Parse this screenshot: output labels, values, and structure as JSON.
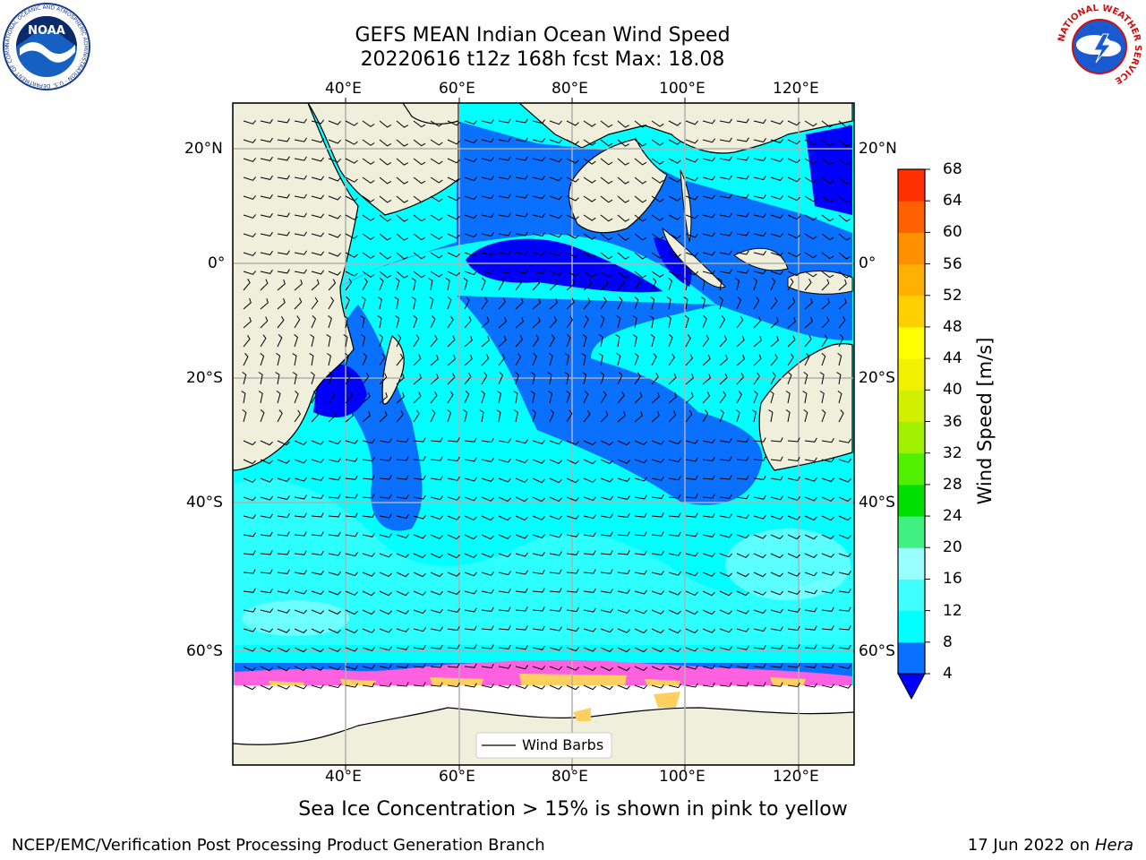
{
  "header": {
    "title_line1": "GEFS MEAN Indian Ocean Wind Speed",
    "title_line2": "20220616 t12z 168h fcst   Max: 18.08"
  },
  "logos": {
    "left": {
      "name": "NOAA",
      "ring_text": "NATIONAL OCEANIC AND ATMOSPHERIC ADMINISTRATION · U.S. DEPARTMENT OF COMMERCE"
    },
    "right": {
      "name": "NATIONAL WEATHER SERVICE"
    }
  },
  "map": {
    "lon_labels": [
      "40°E",
      "60°E",
      "80°E",
      "100°E",
      "120°E"
    ],
    "lat_labels": [
      "20°N",
      "0°",
      "20°S",
      "40°S",
      "60°S"
    ],
    "legend_label": "Wind Barbs",
    "ice_note": "Sea Ice Concentration > 15% is shown in pink to yellow"
  },
  "colorbar": {
    "label": "Wind Speed [m/s]",
    "ticks": [
      "4",
      "8",
      "12",
      "16",
      "20",
      "24",
      "28",
      "32",
      "36",
      "40",
      "44",
      "48",
      "52",
      "56",
      "60",
      "64",
      "68"
    ],
    "colors": [
      "#0a70ff",
      "#00ffff",
      "#40ffff",
      "#9affff",
      "#40f080",
      "#00e000",
      "#50f000",
      "#a0f000",
      "#d0f000",
      "#f0f000",
      "#ffff00",
      "#ffd000",
      "#ffb000",
      "#ff9000",
      "#ff6000",
      "#ff3000",
      "#ff0000"
    ],
    "extend_color": "#0000ff"
  },
  "footer": {
    "left": "NCEP/EMC/Verification Post Processing Product Generation Branch",
    "right_date": "17 Jun 2022 on",
    "right_host": "Hera"
  }
}
